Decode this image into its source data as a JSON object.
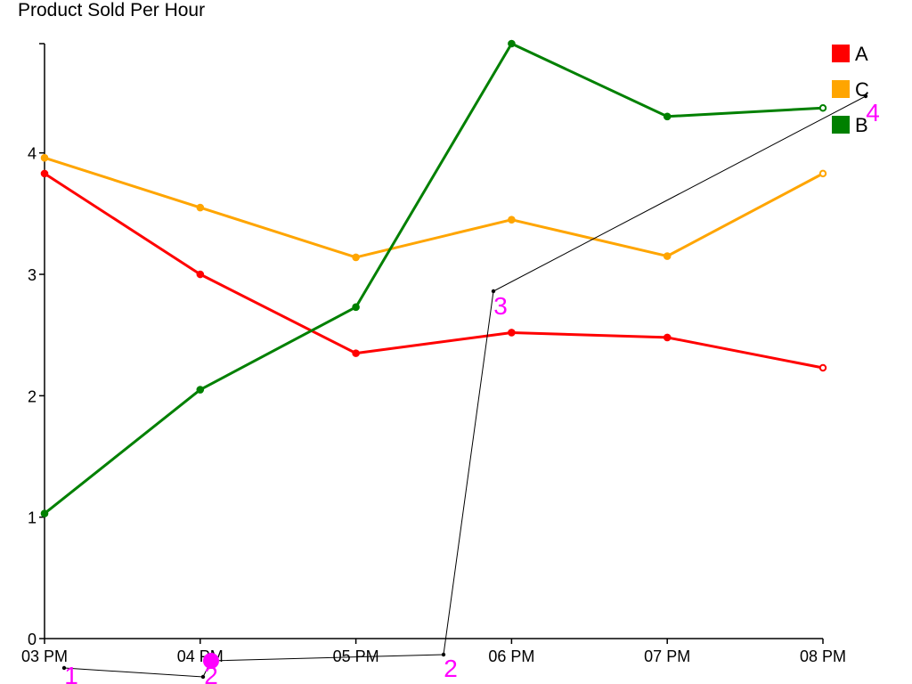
{
  "chart_data": {
    "type": "line",
    "title": "Product Sold Per Hour",
    "xlabel": "",
    "ylabel": "",
    "categories": [
      "03 PM",
      "04 PM",
      "05 PM",
      "06 PM",
      "07 PM",
      "08 PM"
    ],
    "ylim": [
      0,
      4.9
    ],
    "yticks": [
      0,
      1,
      2,
      3,
      4
    ],
    "grid": false,
    "legend_position": "top-right",
    "series": [
      {
        "name": "A",
        "color": "#ff0000",
        "values": [
          3.83,
          3.0,
          2.35,
          2.52,
          2.48,
          2.23
        ]
      },
      {
        "name": "C",
        "color": "#ffa500",
        "values": [
          3.96,
          3.55,
          3.14,
          3.45,
          3.15,
          3.83
        ]
      },
      {
        "name": "B",
        "color": "#008000",
        "values": [
          1.03,
          2.05,
          2.73,
          4.9,
          4.3,
          4.37
        ]
      }
    ],
    "legend_order": [
      "A",
      "C",
      "B"
    ],
    "annotation": {
      "color": "#ff00ff",
      "labels": [
        "1",
        "2",
        "2",
        "3",
        "4"
      ]
    }
  }
}
